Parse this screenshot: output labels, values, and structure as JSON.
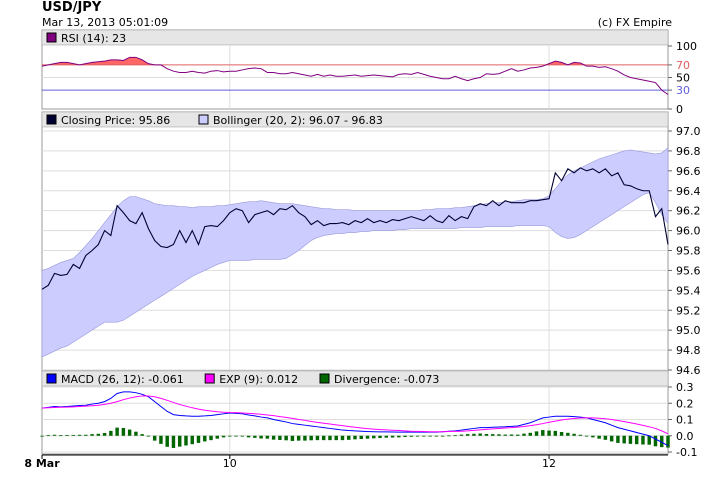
{
  "header": {
    "title": "USD/JPY",
    "timestamp": "Mar 13, 2013 05:01:09",
    "copyright": "(c) FX Empire"
  },
  "colors": {
    "rsi_line": "#800080",
    "rsi_fill": "#ff6666",
    "rsi_70_line": "#e06060",
    "rsi_30_line": "#6060e0",
    "price_line": "#000033",
    "bollinger_fill": "#ccccff",
    "bollinger_border": "#9999dd",
    "macd": "#0000ff",
    "exp": "#ff00ff",
    "divergence": "#006600",
    "grid": "#dddddd",
    "legend_bg": "#e6e6e6"
  },
  "chart_data": [
    {
      "panel": "rsi",
      "type": "line",
      "legend": [
        {
          "swatch": "#800080",
          "label": "RSI (14): 23"
        }
      ],
      "ylim": [
        0,
        100
      ],
      "yticks": [
        "100",
        "70",
        "50",
        "30",
        "0"
      ],
      "ytick_values": [
        100,
        70,
        50,
        30,
        0
      ],
      "reference_lines": [
        70,
        30
      ],
      "values": [
        68,
        70,
        72,
        74,
        74,
        72,
        70,
        72,
        74,
        75,
        76,
        78,
        78,
        77,
        82,
        82,
        78,
        72,
        70,
        70,
        64,
        60,
        58,
        58,
        60,
        58,
        57,
        60,
        61,
        59,
        60,
        60,
        62,
        64,
        65,
        64,
        58,
        58,
        56,
        56,
        58,
        56,
        54,
        52,
        55,
        52,
        54,
        52,
        52,
        53,
        54,
        52,
        53,
        54,
        53,
        52,
        51,
        55,
        56,
        55,
        58,
        55,
        52,
        50,
        48,
        48,
        52,
        48,
        45,
        48,
        50,
        56,
        55,
        56,
        60,
        64,
        60,
        62,
        65,
        66,
        68,
        72,
        76,
        74,
        70,
        74,
        73,
        68,
        68,
        66,
        67,
        64,
        60,
        54,
        50,
        48,
        46,
        44,
        42,
        30,
        23
      ]
    },
    {
      "panel": "price",
      "type": "line",
      "legend": [
        {
          "swatch": "#000033",
          "label": "Closing Price: 95.86"
        },
        {
          "swatch": "#ccccff",
          "label": "Bollinger (20, 2): 96.07 - 96.83"
        }
      ],
      "ylim": [
        94.6,
        97.0
      ],
      "yticks": [
        "97.0",
        "96.8",
        "96.6",
        "96.4",
        "96.2",
        "96.0",
        "95.8",
        "95.6",
        "95.4",
        "95.2",
        "95.0",
        "94.8",
        "94.6"
      ],
      "ytick_values": [
        97.0,
        96.8,
        96.6,
        96.4,
        96.2,
        96.0,
        95.8,
        95.6,
        95.4,
        95.2,
        95.0,
        94.8,
        94.6
      ],
      "series": [
        {
          "name": "Closing Price",
          "values": [
            95.41,
            95.45,
            95.57,
            95.55,
            95.56,
            95.66,
            95.62,
            95.75,
            95.8,
            95.86,
            96.0,
            95.95,
            96.25,
            96.18,
            96.1,
            96.07,
            96.18,
            96.02,
            95.9,
            95.84,
            95.83,
            95.86,
            96.0,
            95.88,
            96.0,
            95.86,
            96.04,
            96.05,
            96.04,
            96.1,
            96.18,
            96.22,
            96.2,
            96.08,
            96.16,
            96.18,
            96.2,
            96.16,
            96.22,
            96.21,
            96.25,
            96.18,
            96.14,
            96.06,
            96.1,
            96.05,
            96.07,
            96.07,
            96.08,
            96.06,
            96.1,
            96.08,
            96.12,
            96.08,
            96.1,
            96.08,
            96.11,
            96.1,
            96.12,
            96.14,
            96.12,
            96.1,
            96.15,
            96.1,
            96.08,
            96.15,
            96.1,
            96.14,
            96.12,
            96.24,
            96.27,
            96.25,
            96.3,
            96.25,
            96.3,
            96.28,
            96.28,
            96.28,
            96.3,
            96.3,
            96.31,
            96.32,
            96.58,
            96.5,
            96.62,
            96.58,
            96.63,
            96.6,
            96.62,
            96.58,
            96.62,
            96.55,
            96.58,
            96.46,
            96.45,
            96.42,
            96.4,
            96.4,
            96.14,
            96.22,
            95.86
          ]
        },
        {
          "name": "Bollinger Upper",
          "values": [
            95.6,
            95.62,
            95.65,
            95.68,
            95.7,
            95.72,
            95.78,
            95.85,
            95.92,
            96.0,
            96.08,
            96.16,
            96.24,
            96.3,
            96.34,
            96.34,
            96.32,
            96.3,
            96.27,
            96.26,
            96.25,
            96.25,
            96.24,
            96.24,
            96.23,
            96.24,
            96.24,
            96.24,
            96.25,
            96.25,
            96.26,
            96.27,
            96.28,
            96.29,
            96.29,
            96.3,
            96.29,
            96.28,
            96.27,
            96.27,
            96.27,
            96.26,
            96.25,
            96.24,
            96.23,
            96.22,
            96.22,
            96.21,
            96.21,
            96.21,
            96.2,
            96.2,
            96.2,
            96.2,
            96.2,
            96.2,
            96.2,
            96.2,
            96.2,
            96.2,
            96.2,
            96.21,
            96.21,
            96.22,
            96.22,
            96.22,
            96.23,
            96.23,
            96.24,
            96.25,
            96.26,
            96.27,
            96.28,
            96.28,
            96.29,
            96.29,
            96.3,
            96.31,
            96.31,
            96.31,
            96.32,
            96.35,
            96.42,
            96.5,
            96.56,
            96.6,
            96.63,
            96.66,
            96.69,
            96.72,
            96.74,
            96.76,
            96.78,
            96.8,
            96.81,
            96.8,
            96.79,
            96.78,
            96.77,
            96.78,
            96.83
          ]
        },
        {
          "name": "Bollinger Lower",
          "values": [
            94.73,
            94.76,
            94.79,
            94.82,
            94.84,
            94.88,
            94.92,
            94.96,
            95.0,
            95.04,
            95.08,
            95.08,
            95.08,
            95.1,
            95.14,
            95.18,
            95.22,
            95.26,
            95.3,
            95.34,
            95.38,
            95.42,
            95.46,
            95.5,
            95.54,
            95.57,
            95.6,
            95.63,
            95.66,
            95.68,
            95.7,
            95.7,
            95.7,
            95.7,
            95.71,
            95.71,
            95.71,
            95.71,
            95.71,
            95.72,
            95.76,
            95.8,
            95.85,
            95.9,
            95.93,
            95.95,
            95.96,
            95.97,
            95.97,
            95.98,
            95.98,
            95.99,
            95.99,
            96.0,
            96.0,
            96.0,
            96.0,
            96.01,
            96.01,
            96.02,
            96.02,
            96.02,
            96.02,
            96.02,
            96.02,
            96.02,
            96.02,
            96.03,
            96.03,
            96.03,
            96.03,
            96.04,
            96.04,
            96.04,
            96.04,
            96.04,
            96.05,
            96.05,
            96.05,
            96.05,
            96.05,
            96.04,
            95.98,
            95.94,
            95.92,
            95.93,
            95.96,
            96.0,
            96.04,
            96.08,
            96.12,
            96.16,
            96.2,
            96.24,
            96.28,
            96.32,
            96.36,
            96.38,
            96.28,
            96.16,
            96.07
          ]
        }
      ]
    },
    {
      "panel": "macd",
      "type": "line",
      "legend": [
        {
          "swatch": "#0000ff",
          "label": "MACD (26, 12): -0.061"
        },
        {
          "swatch": "#ff00ff",
          "label": "EXP (9): 0.012"
        },
        {
          "swatch": "#006600",
          "label": "Divergence: -0.073"
        }
      ],
      "ylim": [
        -0.1,
        0.3
      ],
      "yticks": [
        "0.3",
        "0.2",
        "0.1",
        "0.0",
        "-0.1"
      ],
      "ytick_values": [
        0.3,
        0.2,
        0.1,
        0.0,
        -0.1
      ],
      "series": [
        {
          "name": "MACD",
          "values": [
            0.17,
            0.175,
            0.18,
            0.178,
            0.18,
            0.183,
            0.186,
            0.188,
            0.195,
            0.2,
            0.21,
            0.23,
            0.26,
            0.27,
            0.27,
            0.265,
            0.255,
            0.24,
            0.21,
            0.18,
            0.15,
            0.13,
            0.125,
            0.122,
            0.12,
            0.12,
            0.122,
            0.125,
            0.13,
            0.135,
            0.14,
            0.138,
            0.135,
            0.128,
            0.122,
            0.115,
            0.11,
            0.1,
            0.092,
            0.085,
            0.075,
            0.07,
            0.065,
            0.06,
            0.055,
            0.05,
            0.045,
            0.04,
            0.035,
            0.032,
            0.03,
            0.028,
            0.026,
            0.025,
            0.024,
            0.024,
            0.023,
            0.022,
            0.022,
            0.022,
            0.022,
            0.022,
            0.022,
            0.022,
            0.025,
            0.028,
            0.03,
            0.035,
            0.04,
            0.045,
            0.05,
            0.05,
            0.052,
            0.054,
            0.055,
            0.058,
            0.06,
            0.07,
            0.08,
            0.095,
            0.11,
            0.115,
            0.12,
            0.12,
            0.12,
            0.118,
            0.115,
            0.11,
            0.1,
            0.09,
            0.08,
            0.065,
            0.05,
            0.04,
            0.03,
            0.02,
            0.01,
            0.0,
            -0.02,
            -0.04,
            -0.061
          ]
        },
        {
          "name": "EXP",
          "values": [
            0.17,
            0.172,
            0.174,
            0.175,
            0.176,
            0.178,
            0.18,
            0.182,
            0.185,
            0.188,
            0.193,
            0.2,
            0.21,
            0.222,
            0.232,
            0.24,
            0.245,
            0.245,
            0.24,
            0.23,
            0.218,
            0.205,
            0.192,
            0.182,
            0.172,
            0.164,
            0.157,
            0.152,
            0.148,
            0.145,
            0.143,
            0.142,
            0.14,
            0.138,
            0.135,
            0.132,
            0.128,
            0.124,
            0.118,
            0.113,
            0.107,
            0.1,
            0.095,
            0.088,
            0.082,
            0.077,
            0.072,
            0.067,
            0.062,
            0.057,
            0.052,
            0.048,
            0.044,
            0.041,
            0.038,
            0.036,
            0.034,
            0.032,
            0.03,
            0.028,
            0.027,
            0.026,
            0.025,
            0.025,
            0.025,
            0.026,
            0.027,
            0.028,
            0.03,
            0.033,
            0.036,
            0.039,
            0.042,
            0.045,
            0.048,
            0.05,
            0.053,
            0.057,
            0.062,
            0.068,
            0.075,
            0.083,
            0.09,
            0.097,
            0.102,
            0.106,
            0.109,
            0.11,
            0.11,
            0.108,
            0.105,
            0.1,
            0.094,
            0.087,
            0.08,
            0.072,
            0.064,
            0.055,
            0.045,
            0.03,
            0.012
          ]
        },
        {
          "name": "Divergence",
          "type": "bar",
          "values": [
            0.0,
            0.003,
            0.006,
            0.003,
            0.004,
            0.005,
            0.006,
            0.006,
            0.01,
            0.012,
            0.017,
            0.03,
            0.05,
            0.048,
            0.038,
            0.025,
            0.01,
            -0.005,
            -0.03,
            -0.05,
            -0.068,
            -0.075,
            -0.067,
            -0.06,
            -0.052,
            -0.044,
            -0.035,
            -0.027,
            -0.018,
            -0.01,
            -0.003,
            -0.004,
            -0.005,
            -0.01,
            -0.013,
            -0.017,
            -0.018,
            -0.024,
            -0.026,
            -0.028,
            -0.032,
            -0.03,
            -0.03,
            -0.028,
            -0.027,
            -0.027,
            -0.027,
            -0.027,
            -0.027,
            -0.025,
            -0.022,
            -0.02,
            -0.018,
            -0.016,
            -0.014,
            -0.012,
            -0.011,
            -0.01,
            -0.008,
            -0.006,
            -0.005,
            -0.004,
            -0.003,
            -0.003,
            0.0,
            0.002,
            0.003,
            0.007,
            0.01,
            0.012,
            0.014,
            0.011,
            0.01,
            0.009,
            0.007,
            0.008,
            0.007,
            0.013,
            0.018,
            0.027,
            0.035,
            0.032,
            0.03,
            0.023,
            0.018,
            0.012,
            0.006,
            0.0,
            -0.01,
            -0.018,
            -0.025,
            -0.035,
            -0.044,
            -0.047,
            -0.05,
            -0.052,
            -0.054,
            -0.055,
            -0.065,
            -0.07,
            -0.073
          ]
        }
      ]
    }
  ],
  "x_axis": {
    "labels": [
      {
        "text": "8 Mar",
        "index": 0,
        "bold": true
      },
      {
        "text": "10",
        "index": 30,
        "bold": false
      },
      {
        "text": "12",
        "index": 81,
        "bold": false
      }
    ]
  }
}
